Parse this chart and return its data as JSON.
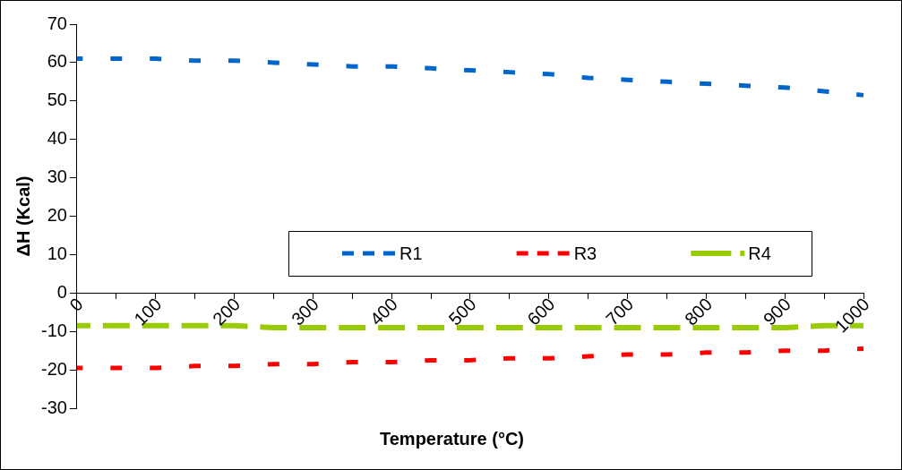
{
  "chart_data": {
    "type": "line",
    "xlabel": "Temperature (°C)",
    "ylabel": "ΔH (Kcal)",
    "categories": [
      "0",
      null,
      "100",
      null,
      "200",
      null,
      "300",
      null,
      "400",
      null,
      "500",
      null,
      "600",
      null,
      "700",
      null,
      "800",
      null,
      "900",
      null,
      "1000"
    ],
    "ylim": [
      -30,
      70
    ],
    "yticks": [
      -30,
      -20,
      -10,
      0,
      10,
      20,
      30,
      40,
      50,
      60,
      70
    ],
    "grid": false,
    "legend": "bottom right",
    "marker": "none",
    "series": [
      {
        "name": "R1",
        "color": "#0066cc",
        "line_style": "dashed",
        "values": [
          61,
          61,
          61,
          60.5,
          60.5,
          60,
          59.5,
          59,
          59,
          58.5,
          58,
          57.5,
          57,
          56,
          55.5,
          55,
          54.5,
          54,
          53.5,
          52.5,
          51.5
        ]
      },
      {
        "name": "R3",
        "color": "#ff0000",
        "line_style": "dashed",
        "values": [
          -19.5,
          -19.5,
          -19.5,
          -19,
          -19,
          -18.5,
          -18.5,
          -18,
          -18,
          -17.5,
          -17.5,
          -17,
          -17,
          -16.5,
          -16,
          -16,
          -15.5,
          -15.5,
          -15,
          -15,
          -14.5
        ]
      },
      {
        "name": "R4",
        "color": "#99cc00",
        "line_style": "long-dashed",
        "values": [
          -8.5,
          -8.5,
          -8.5,
          -8.5,
          -8.5,
          -9,
          -9,
          -9,
          -9,
          -9,
          -9,
          -9,
          -9,
          -9,
          -9,
          -9,
          -9,
          -9,
          -9,
          -8.5,
          -8.5
        ]
      }
    ]
  }
}
